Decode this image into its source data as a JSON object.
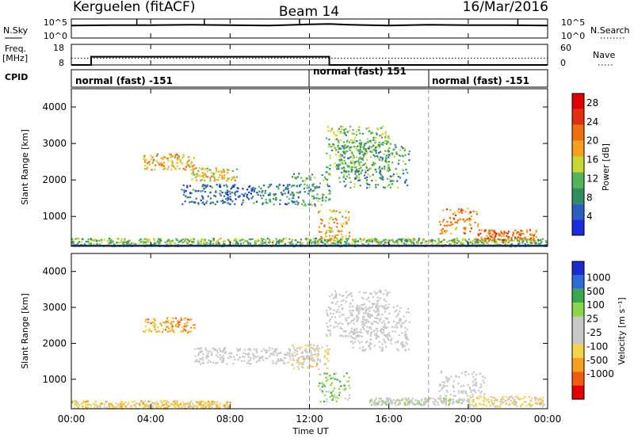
{
  "header": {
    "station": "Kerguelen (fitACF)",
    "beam": "Beam 14",
    "date": "16/Mar/2016"
  },
  "nsky_panel": {
    "left_label": "N.Sky",
    "left_ticks": [
      "10^5",
      "10^0"
    ],
    "right_ticks": [
      "10^5",
      "10^0"
    ],
    "right_label": "N.Search"
  },
  "freq_panel": {
    "left_label_top": "Freq.",
    "left_label_unit": "[MHz]",
    "left_ticks": [
      "18",
      "8"
    ],
    "right_ticks": [
      "60",
      "0"
    ],
    "right_label": "Nave"
  },
  "cpid_panel": {
    "label": "CPID",
    "modes": [
      "normal (fast) -151",
      "normal (fast) 151",
      "normal (fast) -151"
    ]
  },
  "time_axis": {
    "title": "Time UT",
    "ticks": [
      "00:00",
      "04:00",
      "08:00",
      "12:00",
      "16:00",
      "20:00",
      "00:00"
    ]
  },
  "colors": {
    "power_scale": [
      "#1b2be0",
      "#2b5fbf",
      "#2f8d5f",
      "#55b45a",
      "#c8d832",
      "#f2a01e",
      "#f07010",
      "#e03010",
      "#e00000"
    ],
    "velocity_scale": [
      "#e00000",
      "#f25a10",
      "#f5a020",
      "#f5d34a",
      "#c8c8c8",
      "#c8c8c8",
      "#8ad548",
      "#3aa84a",
      "#2b6bd8",
      "#1b2bd0"
    ],
    "flat_gray": "#c8c8c8"
  },
  "chart_data": [
    {
      "type": "line",
      "title": "N.Sky",
      "ylabel": "N.Sky",
      "y2label": "N.Search",
      "x_unit": "hours UT",
      "xlim": [
        0,
        24
      ],
      "ylim_log10": [
        0,
        5
      ],
      "series": [
        {
          "name": "N.Sky",
          "x": [
            0,
            2,
            4,
            6,
            8,
            10,
            12,
            13,
            14,
            16,
            18,
            20,
            22,
            24
          ],
          "y_log10": [
            3.3,
            3.4,
            3.4,
            3.5,
            3.4,
            3.3,
            3.6,
            3.7,
            3.5,
            3.3,
            3.5,
            3.4,
            3.4,
            3.3
          ]
        }
      ]
    },
    {
      "type": "line",
      "title": "Freq.",
      "ylabel": "Freq. [MHz]",
      "y2label": "Nave",
      "xlim": [
        0,
        24
      ],
      "ylim": [
        8,
        18
      ],
      "y2lim": [
        0,
        60
      ],
      "series": [
        {
          "name": "Freq.",
          "x": [
            0,
            1,
            1,
            13,
            13,
            24
          ],
          "y": [
            8,
            8,
            12,
            12,
            8,
            8
          ]
        },
        {
          "name": "Nave",
          "x": [
            0,
            24
          ],
          "y": [
            20,
            20
          ]
        }
      ]
    },
    {
      "type": "heatmap",
      "title": "",
      "ylabel": "Slant Range [km]",
      "colorbar_label": "Power [dB]",
      "xlim": [
        0,
        24
      ],
      "ylim": [
        180,
        4500
      ],
      "yticks": [
        1000,
        2000,
        3000,
        4000
      ],
      "colorbar_ticks": [
        4,
        8,
        12,
        16,
        20,
        24,
        28
      ],
      "colorbar_range": [
        0,
        30
      ],
      "echo_regions": [
        {
          "t_start": 0.0,
          "t_end": 24.0,
          "range_start": 200,
          "range_end": 420,
          "level": 12
        },
        {
          "t_start": 3.6,
          "t_end": 6.2,
          "range_start": 2300,
          "range_end": 2750,
          "level": 18
        },
        {
          "t_start": 5.5,
          "t_end": 11.5,
          "range_start": 1350,
          "range_end": 1900,
          "level": 6
        },
        {
          "t_start": 6.0,
          "t_end": 8.3,
          "range_start": 2000,
          "range_end": 2350,
          "level": 16
        },
        {
          "t_start": 11.0,
          "t_end": 13.0,
          "range_start": 1300,
          "range_end": 2200,
          "level": 10
        },
        {
          "t_start": 12.4,
          "t_end": 14.0,
          "range_start": 350,
          "range_end": 1200,
          "level": 18
        },
        {
          "t_start": 12.8,
          "t_end": 16.0,
          "range_start": 2200,
          "range_end": 3500,
          "level": 12
        },
        {
          "t_start": 13.4,
          "t_end": 17.0,
          "range_start": 1800,
          "range_end": 3100,
          "level": 10
        },
        {
          "t_start": 18.5,
          "t_end": 20.5,
          "range_start": 550,
          "range_end": 1250,
          "level": 20
        },
        {
          "t_start": 20.4,
          "t_end": 23.4,
          "range_start": 350,
          "range_end": 650,
          "level": 22
        }
      ]
    },
    {
      "type": "heatmap",
      "title": "",
      "ylabel": "Slant Range [km]",
      "colorbar_label": "Velocity [m s⁻¹]",
      "xlim": [
        0,
        24
      ],
      "ylim": [
        180,
        4500
      ],
      "yticks": [
        1000,
        2000,
        3000,
        4000
      ],
      "colorbar_ticks": [
        1000,
        500,
        100,
        25,
        -25,
        -100,
        -500,
        -1000
      ],
      "echo_regions": [
        {
          "t_start": 0.0,
          "t_end": 8.0,
          "range_start": 200,
          "range_end": 420,
          "velocity": -200
        },
        {
          "t_start": 3.6,
          "t_end": 6.2,
          "range_start": 2300,
          "range_end": 2750,
          "velocity": -300
        },
        {
          "t_start": 6.2,
          "t_end": 12.5,
          "range_start": 1450,
          "range_end": 1900,
          "velocity": 0
        },
        {
          "t_start": 11.0,
          "t_end": 13.0,
          "range_start": 1300,
          "range_end": 2000,
          "velocity": -150
        },
        {
          "t_start": 12.4,
          "t_end": 14.0,
          "range_start": 400,
          "range_end": 1200,
          "velocity": 200
        },
        {
          "t_start": 12.8,
          "t_end": 16.0,
          "range_start": 2200,
          "range_end": 3500,
          "velocity": 0
        },
        {
          "t_start": 14.0,
          "t_end": 17.0,
          "range_start": 1800,
          "range_end": 3100,
          "velocity": 0
        },
        {
          "t_start": 15.0,
          "t_end": 20.0,
          "range_start": 300,
          "range_end": 500,
          "velocity": 80
        },
        {
          "t_start": 18.5,
          "t_end": 20.8,
          "range_start": 550,
          "range_end": 1250,
          "velocity": 0
        },
        {
          "t_start": 20.0,
          "t_end": 23.8,
          "range_start": 250,
          "range_end": 550,
          "velocity": -150
        }
      ]
    }
  ]
}
